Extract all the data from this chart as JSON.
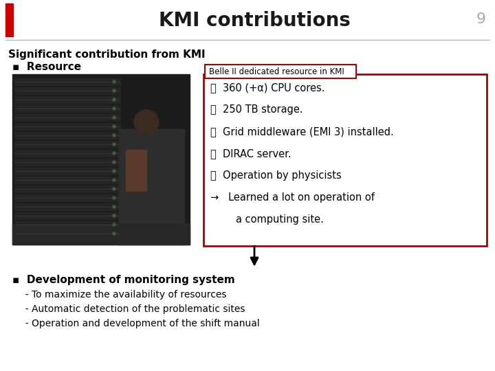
{
  "title": "KMI contributions",
  "slide_number": "9",
  "red_bar_color": "#cc0000",
  "title_color": "#1a1a1a",
  "subtitle": "Significant contribution from KMI",
  "bullet1": "▪  Resource",
  "belle_label": "Belle II dedicated resource in KMI",
  "box_items": [
    "・  360 (+α) CPU cores.",
    "・  250 TB storage.",
    "・  Grid middleware (EMI 3) installed.",
    "・  DIRAC server.",
    "・  Operation by physicists",
    "→   Learned a lot on operation of",
    "        a computing site."
  ],
  "bullet2_bold": "▪  Development of monitoring system",
  "bullet2_sub": [
    "  - To maximize the availability of resources",
    "  - Automatic detection of the problematic sites",
    "  - Operation and development of the shift manual"
  ],
  "box_border_color": "#aa0000",
  "divider_color": "#bbbbbb",
  "img_color_main": "#1c1c1c",
  "img_color_mid": "#2a2a2a",
  "img_line_color": "#3a3a3a"
}
